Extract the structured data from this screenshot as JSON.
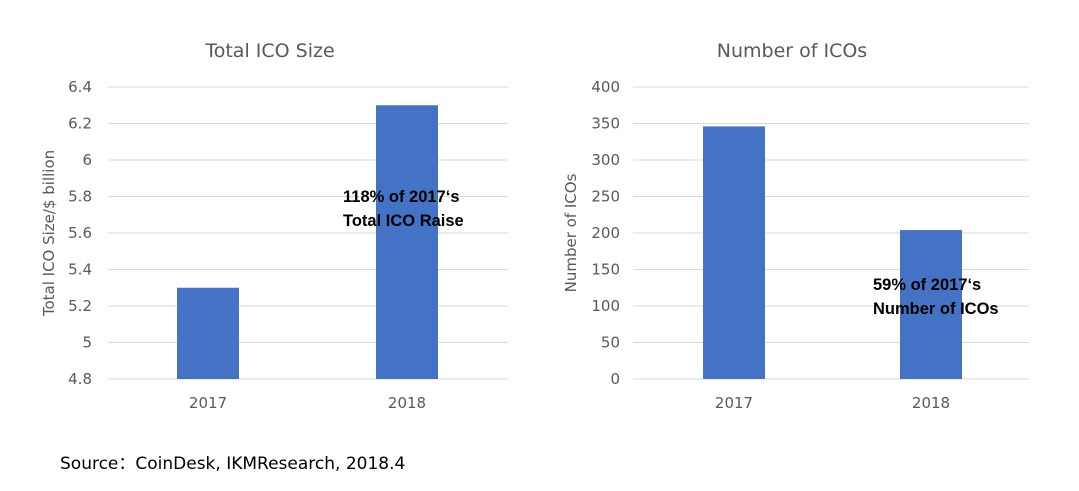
{
  "bar_color": "#4472C4",
  "grid_color": "#D9D9D9",
  "source_text": "Source：CoinDesk, IKMResearch,   2018.4",
  "chart_data": [
    {
      "type": "bar",
      "title": "Total ICO Size",
      "ylabel": "Total ICO Size/$ billion",
      "xlabel": "",
      "categories": [
        "2017",
        "2018"
      ],
      "values": [
        5.3,
        6.3
      ],
      "ylim": [
        4.8,
        6.4
      ],
      "yticks": [
        "4.8",
        "5",
        "5.2",
        "5.4",
        "5.6",
        "5.8",
        "6",
        "6.2",
        "6.4"
      ],
      "grid": true,
      "annotation": [
        "118% of 2017‘s",
        "Total ICO Raise"
      ]
    },
    {
      "type": "bar",
      "title": "Number of ICOs",
      "ylabel": "Number of ICOs",
      "xlabel": "",
      "categories": [
        "2017",
        "2018"
      ],
      "values": [
        346,
        204
      ],
      "ylim": [
        0,
        400
      ],
      "yticks": [
        "0",
        "50",
        "100",
        "150",
        "200",
        "250",
        "300",
        "350",
        "400"
      ],
      "grid": true,
      "annotation": [
        "59% of 2017‘s",
        "Number of ICOs"
      ]
    }
  ]
}
